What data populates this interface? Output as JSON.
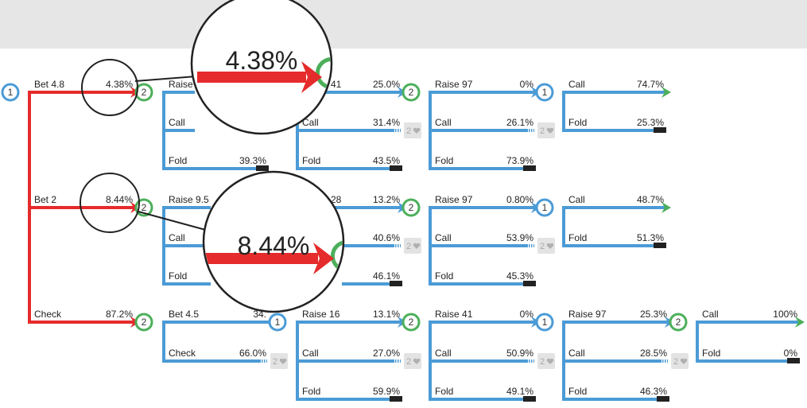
{
  "colors": {
    "blue": "#4b9bd6",
    "red": "#e52b2b",
    "green": "#4caf5a",
    "black": "#222222",
    "grey_box": "#e3e3e3"
  },
  "nodes": [
    {
      "label": "1",
      "player": "p1"
    },
    {
      "label": "2",
      "player": "p2"
    },
    {
      "label": "2",
      "player": "p2"
    },
    {
      "label": "2",
      "player": "p2"
    },
    {
      "label": "1",
      "player": "p1"
    },
    {
      "label": "2",
      "player": "p2"
    },
    {
      "label": "2",
      "player": "p2"
    },
    {
      "label": "2",
      "player": "p2"
    },
    {
      "label": "1",
      "player": "p1"
    },
    {
      "label": "1",
      "player": "p1"
    },
    {
      "label": "1",
      "player": "p1"
    },
    {
      "label": "2",
      "player": "p2"
    }
  ],
  "edges": [
    {
      "label": "Bet 4.8",
      "pct": "4.38%",
      "color": "red",
      "end": "arrow-red"
    },
    {
      "label": "Bet 2",
      "pct": "8.44%",
      "color": "red",
      "end": "arrow-red"
    },
    {
      "label": "Check",
      "pct": "87.2%",
      "color": "red",
      "end": "arrow-red"
    },
    {
      "label": "Raise",
      "pct": "",
      "color": "blue",
      "end": "none"
    },
    {
      "label": "Call",
      "pct": "",
      "color": "blue",
      "end": "none"
    },
    {
      "label": "Fold",
      "pct": "39.3%",
      "color": "blue",
      "end": "fold"
    },
    {
      "label": "",
      "pct": "",
      "color": "blue",
      "end": "none"
    },
    {
      "label": "41",
      "pct": "25.0%",
      "color": "blue",
      "end": "arrow-blue"
    },
    {
      "label": "Call",
      "pct": "31.4%",
      "color": "blue",
      "end": "hidden"
    },
    {
      "label": "Fold",
      "pct": "43.5%",
      "color": "blue",
      "end": "fold"
    },
    {
      "label": "Raise 97",
      "pct": "0%",
      "color": "blue",
      "end": "arrow-blue"
    },
    {
      "label": "Call",
      "pct": "26.1%",
      "color": "blue",
      "end": "hidden"
    },
    {
      "label": "Fold",
      "pct": "73.9%",
      "color": "blue",
      "end": "fold"
    },
    {
      "label": "Call",
      "pct": "74.7%",
      "color": "blue",
      "end": "arrow-green"
    },
    {
      "label": "Fold",
      "pct": "25.3%",
      "color": "blue",
      "end": "fold"
    },
    {
      "label": "Raise 9.5",
      "pct": "",
      "color": "blue",
      "end": "none"
    },
    {
      "label": "Call",
      "pct": "",
      "color": "blue",
      "end": "none"
    },
    {
      "label": "Fold",
      "pct": "",
      "color": "blue",
      "end": "none"
    },
    {
      "label": "28",
      "pct": "13.2%",
      "color": "blue",
      "end": "arrow-blue"
    },
    {
      "label": "",
      "pct": "40.6%",
      "color": "blue",
      "end": "hidden"
    },
    {
      "label": "",
      "pct": "46.1%",
      "color": "blue",
      "end": "fold"
    },
    {
      "label": "Raise 97",
      "pct": "0.80%",
      "color": "blue",
      "end": "arrow-blue"
    },
    {
      "label": "Call",
      "pct": "53.9%",
      "color": "blue",
      "end": "hidden"
    },
    {
      "label": "Fold",
      "pct": "45.3%",
      "color": "blue",
      "end": "fold"
    },
    {
      "label": "Call",
      "pct": "48.7%",
      "color": "blue",
      "end": "arrow-green"
    },
    {
      "label": "Fold",
      "pct": "51.3%",
      "color": "blue",
      "end": "fold"
    },
    {
      "label": "Bet 4.5",
      "pct": "34.",
      "color": "blue",
      "end": "none"
    },
    {
      "label": "Check",
      "pct": "66.0%",
      "color": "blue",
      "end": "hidden"
    },
    {
      "label": "Raise 16",
      "pct": "13.1%",
      "color": "blue",
      "end": "arrow-blue"
    },
    {
      "label": "Call",
      "pct": "27.0%",
      "color": "blue",
      "end": "hidden"
    },
    {
      "label": "Fold",
      "pct": "59.9%",
      "color": "blue",
      "end": "fold"
    },
    {
      "label": "Raise 41",
      "pct": "0%",
      "color": "blue",
      "end": "arrow-blue"
    },
    {
      "label": "Call",
      "pct": "50.9%",
      "color": "blue",
      "end": "hidden"
    },
    {
      "label": "Fold",
      "pct": "49.1%",
      "color": "blue",
      "end": "fold"
    },
    {
      "label": "Raise 97",
      "pct": "25.3%",
      "color": "blue",
      "end": "arrow-blue"
    },
    {
      "label": "Call",
      "pct": "28.5%",
      "color": "blue",
      "end": "hidden"
    },
    {
      "label": "Fold",
      "pct": "46.3%",
      "color": "blue",
      "end": "fold"
    },
    {
      "label": "Call",
      "pct": "100%",
      "color": "blue",
      "end": "arrow-green"
    },
    {
      "label": "Fold",
      "pct": "0%",
      "color": "blue",
      "end": "fold"
    }
  ],
  "hidden_node_label": "2",
  "hidden_node_icon": "heart-icon",
  "zooms": [
    {
      "value": "4.38%"
    },
    {
      "value": "8.44%"
    }
  ]
}
